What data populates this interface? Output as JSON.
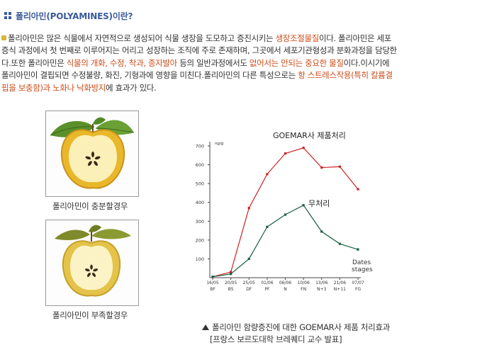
{
  "header": {
    "title": "폴리아민(POLYAMINES)이란?",
    "icon": "grid-square-icon"
  },
  "intro": {
    "bullet_icon": "small-square-bullet-icon",
    "segments": [
      {
        "text": "폴리아민은 많은 식물에서 자연적으로 생성되어 식물 생장을 도모하고 증진시키는 ",
        "highlight": false
      },
      {
        "text": "생장조절물질",
        "highlight": true
      },
      {
        "text": "이다. 폴리아민은 세포증식 과정에서 첫 번째로 이루어지는 어리고 성장하는 조직에 주로 존재하며, 그곳에서 세포기관형성과 분화과정을 담당한다.또한 폴리아민은 ",
        "highlight": false
      },
      {
        "text": "식물의 개화, 수정, 착과, 종자발아",
        "highlight": true
      },
      {
        "text": " 등의 일반과정에서도 ",
        "highlight": false
      },
      {
        "text": "없어서는 안되는 중요한 물질",
        "highlight": true
      },
      {
        "text": "이다.이시기에 폴리아민이 결핍되면 수정불량, 화진, 기형과에 영향을 미친다.폴리아민의 다른 특성으로는 ",
        "highlight": false
      },
      {
        "text": "항 스트레스작용(특히 칼륨결핍을 보충함)과 노화나 낙화방지",
        "highlight": true
      },
      {
        "text": "에 효과가 있다.",
        "highlight": false
      }
    ],
    "highlight_color": "#cc4d1a"
  },
  "images": [
    {
      "name": "full-apple-image",
      "caption": "폴리아민이 충분할경우"
    },
    {
      "name": "deficient-apple-image",
      "caption": "폴리아민이 부족할경우"
    }
  ],
  "chart_data": {
    "type": "line",
    "title": "GOEMAR사 제품처리",
    "ylabel": "ng/g",
    "xlabel": "Dates stages",
    "ylim": [
      0,
      700
    ],
    "yticks": [
      100,
      200,
      300,
      400,
      500,
      600,
      700
    ],
    "categories_dates": [
      "16/05",
      "20/05",
      "25/05",
      "01/06",
      "06/06",
      "10/06",
      "13/06",
      "21/06",
      "07/07"
    ],
    "categories_stages": [
      "BF",
      "B5",
      "DF",
      "PF",
      "N",
      "FN",
      "N+3",
      "N+11",
      "FG"
    ],
    "series": [
      {
        "name": "GOEMAR사 제품처리",
        "color": "#cc2222",
        "values": [
          5,
          30,
          370,
          550,
          660,
          690,
          585,
          590,
          470
        ]
      },
      {
        "name": "무처리",
        "color": "#1a5e40",
        "values": [
          5,
          20,
          100,
          270,
          335,
          385,
          245,
          180,
          150
        ]
      }
    ],
    "series_labels": {
      "treated": "GOEMAR사 제품처리",
      "untreated": "무처리"
    },
    "grid": false,
    "axis_label_line1": "Dates",
    "axis_label_line2": "stages"
  },
  "figure_caption": {
    "line1": "폴리아민 함량증진에 대한  GOEMAR사 제품 처리효과",
    "line2": "[프랑스 보르도대학 브레퀘디 교수 발표]",
    "marker_icon": "triangle-up-icon"
  }
}
